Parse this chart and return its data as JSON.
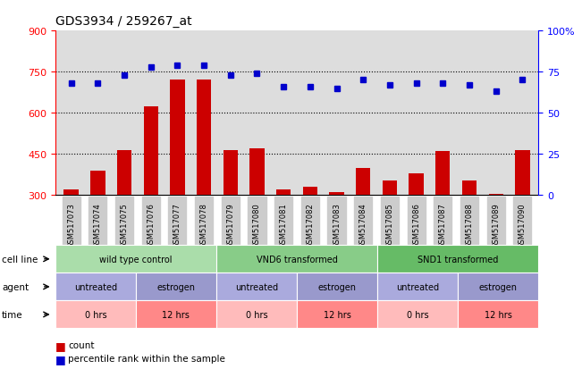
{
  "title": "GDS3934 / 259267_at",
  "samples": [
    "GSM517073",
    "GSM517074",
    "GSM517075",
    "GSM517076",
    "GSM517077",
    "GSM517078",
    "GSM517079",
    "GSM517080",
    "GSM517081",
    "GSM517082",
    "GSM517083",
    "GSM517084",
    "GSM517085",
    "GSM517086",
    "GSM517087",
    "GSM517088",
    "GSM517089",
    "GSM517090"
  ],
  "counts": [
    320,
    390,
    465,
    625,
    720,
    720,
    465,
    470,
    320,
    330,
    310,
    400,
    355,
    380,
    460,
    355,
    305,
    465
  ],
  "percentiles": [
    68,
    68,
    73,
    78,
    79,
    79,
    73,
    74,
    66,
    66,
    65,
    70,
    67,
    68,
    68,
    67,
    63,
    70
  ],
  "ylim_left": [
    300,
    900
  ],
  "ylim_right": [
    0,
    100
  ],
  "yticks_left": [
    300,
    450,
    600,
    750,
    900
  ],
  "yticks_right": [
    0,
    25,
    50,
    75,
    100
  ],
  "bar_color": "#cc0000",
  "dot_color": "#0000cc",
  "cell_line_groups": [
    {
      "label": "wild type control",
      "start": 0,
      "end": 6,
      "color": "#aaddaa"
    },
    {
      "label": "VND6 transformed",
      "start": 6,
      "end": 12,
      "color": "#88cc88"
    },
    {
      "label": "SND1 transformed",
      "start": 12,
      "end": 18,
      "color": "#66bb66"
    }
  ],
  "agent_groups": [
    {
      "label": "untreated",
      "start": 0,
      "end": 3,
      "color": "#aaaadd"
    },
    {
      "label": "estrogen",
      "start": 3,
      "end": 6,
      "color": "#9999cc"
    },
    {
      "label": "untreated",
      "start": 6,
      "end": 9,
      "color": "#aaaadd"
    },
    {
      "label": "estrogen",
      "start": 9,
      "end": 12,
      "color": "#9999cc"
    },
    {
      "label": "untreated",
      "start": 12,
      "end": 15,
      "color": "#aaaadd"
    },
    {
      "label": "estrogen",
      "start": 15,
      "end": 18,
      "color": "#9999cc"
    }
  ],
  "time_groups": [
    {
      "label": "0 hrs",
      "start": 0,
      "end": 3,
      "color": "#ffbbbb"
    },
    {
      "label": "12 hrs",
      "start": 3,
      "end": 6,
      "color": "#ff8888"
    },
    {
      "label": "0 hrs",
      "start": 6,
      "end": 9,
      "color": "#ffbbbb"
    },
    {
      "label": "12 hrs",
      "start": 9,
      "end": 12,
      "color": "#ff8888"
    },
    {
      "label": "0 hrs",
      "start": 12,
      "end": 15,
      "color": "#ffbbbb"
    },
    {
      "label": "12 hrs",
      "start": 15,
      "end": 18,
      "color": "#ff8888"
    }
  ],
  "plot_bg": "#dddddd",
  "xticklabel_bg": "#cccccc"
}
